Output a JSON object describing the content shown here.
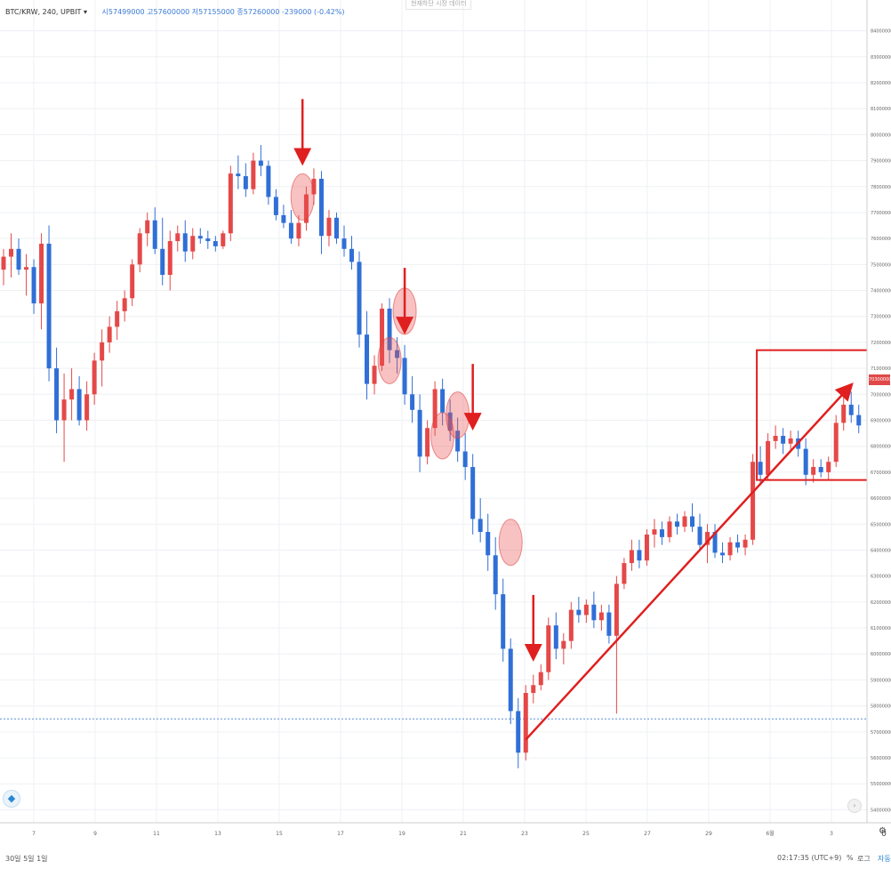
{
  "header": {
    "symbol": "BTC/KRW, 240, UPBIT",
    "symbol_caret": "▾",
    "ohlc_text": "시57499000  고57600000  저57155000  종57260000  -239000 (-0.42%)",
    "top_note": "현재하단 시장 데이터"
  },
  "chart_data": {
    "type": "candlestick",
    "x_ticks": [
      "7",
      "9",
      "11",
      "13",
      "15",
      "17",
      "19",
      "21",
      "23",
      "25",
      "27",
      "29",
      "6월",
      "3"
    ],
    "y_ticks": [
      "84000000",
      "83000000",
      "82000000",
      "81000000",
      "80000000",
      "79000000",
      "78000000",
      "77000000",
      "76000000",
      "75000000",
      "74000000",
      "73000000",
      "72000000",
      "71000000",
      "70000000",
      "69000000",
      "68000000",
      "67000000",
      "66000000",
      "65000000",
      "64000000",
      "63000000",
      "62000000",
      "61000000",
      "60000000",
      "59000000",
      "58000000",
      "57000000",
      "56000000",
      "55000000",
      "54000000",
      "53000000"
    ],
    "current_price_label": "70300000",
    "reference_line_price": 57500000,
    "up_color": "#e54848",
    "down_color": "#2f6fd6",
    "candles": [
      [
        0,
        74.8,
        75.6,
        74.2,
        75.3
      ],
      [
        1,
        75.3,
        76.2,
        74.5,
        75.6
      ],
      [
        2,
        75.6,
        76.0,
        74.6,
        74.8
      ],
      [
        3,
        74.8,
        75.4,
        73.8,
        74.9
      ],
      [
        4,
        74.9,
        75.2,
        73.1,
        73.5
      ],
      [
        5,
        73.5,
        76.2,
        72.5,
        75.8
      ],
      [
        6,
        75.8,
        76.5,
        70.5,
        71.0
      ],
      [
        7,
        71.0,
        71.8,
        68.5,
        69.0
      ],
      [
        8,
        69.0,
        70.8,
        67.4,
        69.8
      ],
      [
        9,
        69.8,
        71.0,
        69.0,
        70.2
      ],
      [
        10,
        70.2,
        70.7,
        68.8,
        69.0
      ],
      [
        11,
        69.0,
        70.5,
        68.6,
        70.0
      ],
      [
        12,
        70.0,
        71.6,
        69.6,
        71.3
      ],
      [
        13,
        71.3,
        72.5,
        70.3,
        72.0
      ],
      [
        14,
        72.0,
        73.0,
        71.6,
        72.6
      ],
      [
        15,
        72.6,
        73.6,
        72.1,
        73.2
      ],
      [
        16,
        73.2,
        74.0,
        72.8,
        73.7
      ],
      [
        17,
        73.7,
        75.2,
        73.4,
        75.0
      ],
      [
        18,
        75.0,
        76.4,
        74.7,
        76.2
      ],
      [
        19,
        76.2,
        77.0,
        75.7,
        76.7
      ],
      [
        20,
        76.7,
        77.2,
        75.4,
        75.6
      ],
      [
        21,
        75.6,
        76.8,
        74.2,
        74.6
      ],
      [
        22,
        74.6,
        76.3,
        74.0,
        75.9
      ],
      [
        23,
        75.9,
        76.5,
        75.5,
        76.2
      ],
      [
        24,
        76.2,
        76.7,
        75.1,
        75.5
      ],
      [
        25,
        75.5,
        76.4,
        75.2,
        76.1
      ],
      [
        26,
        76.1,
        76.4,
        75.8,
        76.0
      ],
      [
        27,
        76.0,
        76.3,
        75.6,
        75.9
      ],
      [
        28,
        75.9,
        76.1,
        75.5,
        75.7
      ],
      [
        29,
        75.7,
        76.3,
        75.6,
        76.2
      ],
      [
        30,
        76.2,
        78.8,
        75.9,
        78.5
      ],
      [
        31,
        78.5,
        79.2,
        77.9,
        78.4
      ],
      [
        32,
        78.4,
        78.9,
        77.6,
        77.9
      ],
      [
        33,
        77.9,
        79.3,
        77.7,
        79.0
      ],
      [
        34,
        79.0,
        79.6,
        78.4,
        78.8
      ],
      [
        35,
        78.8,
        79.0,
        77.3,
        77.6
      ],
      [
        36,
        77.6,
        77.9,
        76.7,
        76.9
      ],
      [
        37,
        76.9,
        77.3,
        76.4,
        76.6
      ],
      [
        38,
        76.6,
        77.1,
        75.8,
        76.0
      ],
      [
        39,
        76.0,
        76.9,
        75.7,
        76.6
      ],
      [
        40,
        76.6,
        78.0,
        76.3,
        77.7
      ],
      [
        41,
        77.7,
        78.7,
        77.3,
        78.3
      ],
      [
        42,
        78.3,
        78.6,
        75.4,
        76.1
      ],
      [
        43,
        76.1,
        77.1,
        75.7,
        76.8
      ],
      [
        44,
        76.8,
        77.0,
        75.8,
        76.0
      ],
      [
        45,
        76.0,
        76.5,
        75.3,
        75.6
      ],
      [
        46,
        75.6,
        76.1,
        74.8,
        75.1
      ],
      [
        47,
        75.1,
        75.5,
        71.8,
        72.3
      ],
      [
        48,
        72.3,
        73.2,
        69.8,
        70.4
      ],
      [
        49,
        70.4,
        71.5,
        70.0,
        71.1
      ],
      [
        50,
        71.1,
        73.5,
        70.9,
        73.3
      ],
      [
        51,
        73.3,
        73.7,
        71.2,
        71.7
      ],
      [
        52,
        71.7,
        72.2,
        70.8,
        71.4
      ],
      [
        53,
        71.4,
        71.9,
        69.6,
        70.0
      ],
      [
        54,
        70.0,
        70.7,
        68.9,
        69.4
      ],
      [
        55,
        69.4,
        70.0,
        67.0,
        67.6
      ],
      [
        56,
        67.6,
        69.0,
        67.3,
        68.7
      ],
      [
        57,
        68.7,
        70.5,
        68.4,
        70.2
      ],
      [
        58,
        70.2,
        70.6,
        68.8,
        69.3
      ],
      [
        59,
        69.3,
        69.8,
        68.2,
        68.6
      ],
      [
        60,
        68.6,
        69.1,
        67.4,
        67.8
      ],
      [
        61,
        67.8,
        68.5,
        66.7,
        67.2
      ],
      [
        62,
        67.2,
        67.7,
        64.6,
        65.2
      ],
      [
        63,
        65.2,
        66.0,
        64.3,
        64.7
      ],
      [
        64,
        64.7,
        65.4,
        63.2,
        63.8
      ],
      [
        65,
        63.8,
        64.5,
        61.7,
        62.3
      ],
      [
        66,
        62.3,
        62.9,
        59.7,
        60.2
      ],
      [
        67,
        60.2,
        60.6,
        57.3,
        57.8
      ],
      [
        68,
        57.8,
        58.3,
        55.6,
        56.2
      ],
      [
        69,
        56.2,
        58.8,
        55.9,
        58.5
      ],
      [
        70,
        58.5,
        59.2,
        58.1,
        58.8
      ],
      [
        71,
        58.8,
        59.6,
        58.6,
        59.3
      ],
      [
        72,
        59.3,
        61.4,
        59.0,
        61.1
      ],
      [
        73,
        61.1,
        61.6,
        59.8,
        60.2
      ],
      [
        74,
        60.2,
        60.8,
        59.6,
        60.5
      ],
      [
        75,
        60.5,
        62.0,
        60.2,
        61.7
      ],
      [
        76,
        61.7,
        62.2,
        61.2,
        61.5
      ],
      [
        77,
        61.5,
        62.1,
        61.2,
        61.9
      ],
      [
        78,
        61.9,
        62.4,
        61.0,
        61.3
      ],
      [
        79,
        61.3,
        61.9,
        60.9,
        61.6
      ],
      [
        80,
        61.6,
        61.9,
        60.4,
        60.7
      ],
      [
        81,
        60.7,
        63.0,
        57.7,
        62.7
      ],
      [
        82,
        62.7,
        63.7,
        62.5,
        63.5
      ],
      [
        83,
        63.5,
        64.4,
        63.2,
        64.0
      ],
      [
        84,
        64.0,
        64.4,
        63.3,
        63.6
      ],
      [
        85,
        63.6,
        64.8,
        63.4,
        64.6
      ],
      [
        86,
        64.6,
        65.2,
        64.1,
        64.8
      ],
      [
        87,
        64.8,
        65.1,
        64.2,
        64.5
      ],
      [
        88,
        64.5,
        65.3,
        64.3,
        65.1
      ],
      [
        89,
        65.1,
        65.4,
        64.6,
        64.9
      ],
      [
        90,
        64.9,
        65.5,
        64.7,
        65.3
      ],
      [
        91,
        65.3,
        65.8,
        64.7,
        64.9
      ],
      [
        92,
        64.9,
        65.4,
        64.0,
        64.2
      ],
      [
        93,
        64.2,
        65.0,
        63.5,
        64.7
      ],
      [
        94,
        64.7,
        65.0,
        63.7,
        63.9
      ],
      [
        95,
        63.9,
        64.3,
        63.5,
        63.8
      ],
      [
        96,
        63.8,
        64.5,
        63.6,
        64.3
      ],
      [
        97,
        64.3,
        64.6,
        63.9,
        64.1
      ],
      [
        98,
        64.1,
        64.6,
        63.8,
        64.4
      ],
      [
        99,
        64.4,
        67.7,
        64.2,
        67.4
      ],
      [
        100,
        67.4,
        68.0,
        66.5,
        66.9
      ],
      [
        101,
        66.9,
        68.5,
        66.7,
        68.2
      ],
      [
        102,
        68.2,
        68.8,
        67.9,
        68.4
      ],
      [
        103,
        68.4,
        68.7,
        67.7,
        68.1
      ],
      [
        104,
        68.1,
        68.6,
        67.8,
        68.3
      ],
      [
        105,
        68.3,
        68.6,
        67.6,
        67.9
      ],
      [
        106,
        67.9,
        68.3,
        66.5,
        66.9
      ],
      [
        107,
        66.9,
        67.5,
        66.6,
        67.2
      ],
      [
        108,
        67.2,
        67.5,
        66.8,
        67.0
      ],
      [
        109,
        67.0,
        67.6,
        66.7,
        67.4
      ],
      [
        110,
        67.4,
        69.2,
        67.2,
        68.9
      ],
      [
        111,
        68.9,
        69.9,
        68.6,
        69.6
      ],
      [
        112,
        69.6,
        70.1,
        68.9,
        69.2
      ],
      [
        113,
        69.2,
        69.6,
        68.5,
        68.8
      ]
    ],
    "candle_x_range": [
      0,
      113
    ],
    "y_range_millions": [
      53.5,
      84.5
    ],
    "annotations": {
      "arrows_down_at": [
        39.5,
        53,
        62,
        70
      ],
      "highlight_circles_at": [
        [
          39.5,
          77.6
        ],
        [
          51,
          71.3
        ],
        [
          53,
          73.2
        ],
        [
          58,
          68.4
        ],
        [
          60,
          69.2
        ],
        [
          67,
          64.3
        ]
      ],
      "trend_arrow": [
        [
          69,
          56.7
        ],
        [
          111.5,
          70.2
        ]
      ],
      "box": [
        [
          100,
          71.7
        ],
        [
          114.5,
          66.7
        ]
      ]
    }
  },
  "footer": {
    "date_range": "30일  5일  1일",
    "clock": "02:17:35 (UTC+9)",
    "percent": "%",
    "log": "로그",
    "auto": "자동",
    "settings_icon": "gear-icon"
  }
}
